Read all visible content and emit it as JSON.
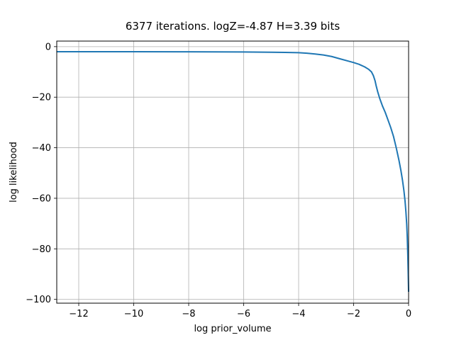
{
  "chart_data": {
    "type": "line",
    "title": "6377 iterations. logZ=-4.87 H=3.39 bits",
    "xlabel": "log prior_volume",
    "ylabel": "log likelihood",
    "xlim": [
      -12.8,
      0
    ],
    "ylim": [
      -101.5,
      2.2
    ],
    "grid": true,
    "xticks": [
      -12,
      -10,
      -8,
      -6,
      -4,
      -2,
      0
    ],
    "xtick_labels": [
      "−12",
      "−10",
      "−8",
      "−6",
      "−4",
      "−2",
      "0"
    ],
    "yticks": [
      0,
      -20,
      -40,
      -60,
      -80,
      -100
    ],
    "ytick_labels": [
      "0",
      "−20",
      "−40",
      "−60",
      "−80",
      "−100"
    ],
    "series": [
      {
        "color": "#1f77b4",
        "x": [
          -12.8,
          -12.0,
          -10.0,
          -8.0,
          -6.0,
          -5.0,
          -4.5,
          -4.0,
          -3.7,
          -3.4,
          -3.1,
          -2.8,
          -2.5,
          -2.2,
          -2.0,
          -1.8,
          -1.6,
          -1.45,
          -1.35,
          -1.28,
          -1.22,
          -1.18,
          -1.12,
          -1.05,
          -0.95,
          -0.85,
          -0.75,
          -0.65,
          -0.55,
          -0.45,
          -0.35,
          -0.28,
          -0.22,
          -0.17,
          -0.13,
          -0.1,
          -0.07,
          -0.05,
          -0.03,
          -0.015,
          0
        ],
        "y": [
          -2.0,
          -2.0,
          -2.0,
          -2.05,
          -2.1,
          -2.2,
          -2.3,
          -2.4,
          -2.6,
          -2.9,
          -3.3,
          -3.9,
          -4.8,
          -5.7,
          -6.3,
          -7.0,
          -8.0,
          -9.0,
          -10.0,
          -11.5,
          -13.5,
          -15.5,
          -18.0,
          -20.5,
          -23.5,
          -26.0,
          -29.0,
          -32.0,
          -35.5,
          -40.0,
          -45.0,
          -49.0,
          -53.0,
          -57.0,
          -61.0,
          -65.0,
          -70.0,
          -75.0,
          -82.0,
          -89.0,
          -97.0
        ]
      }
    ]
  }
}
